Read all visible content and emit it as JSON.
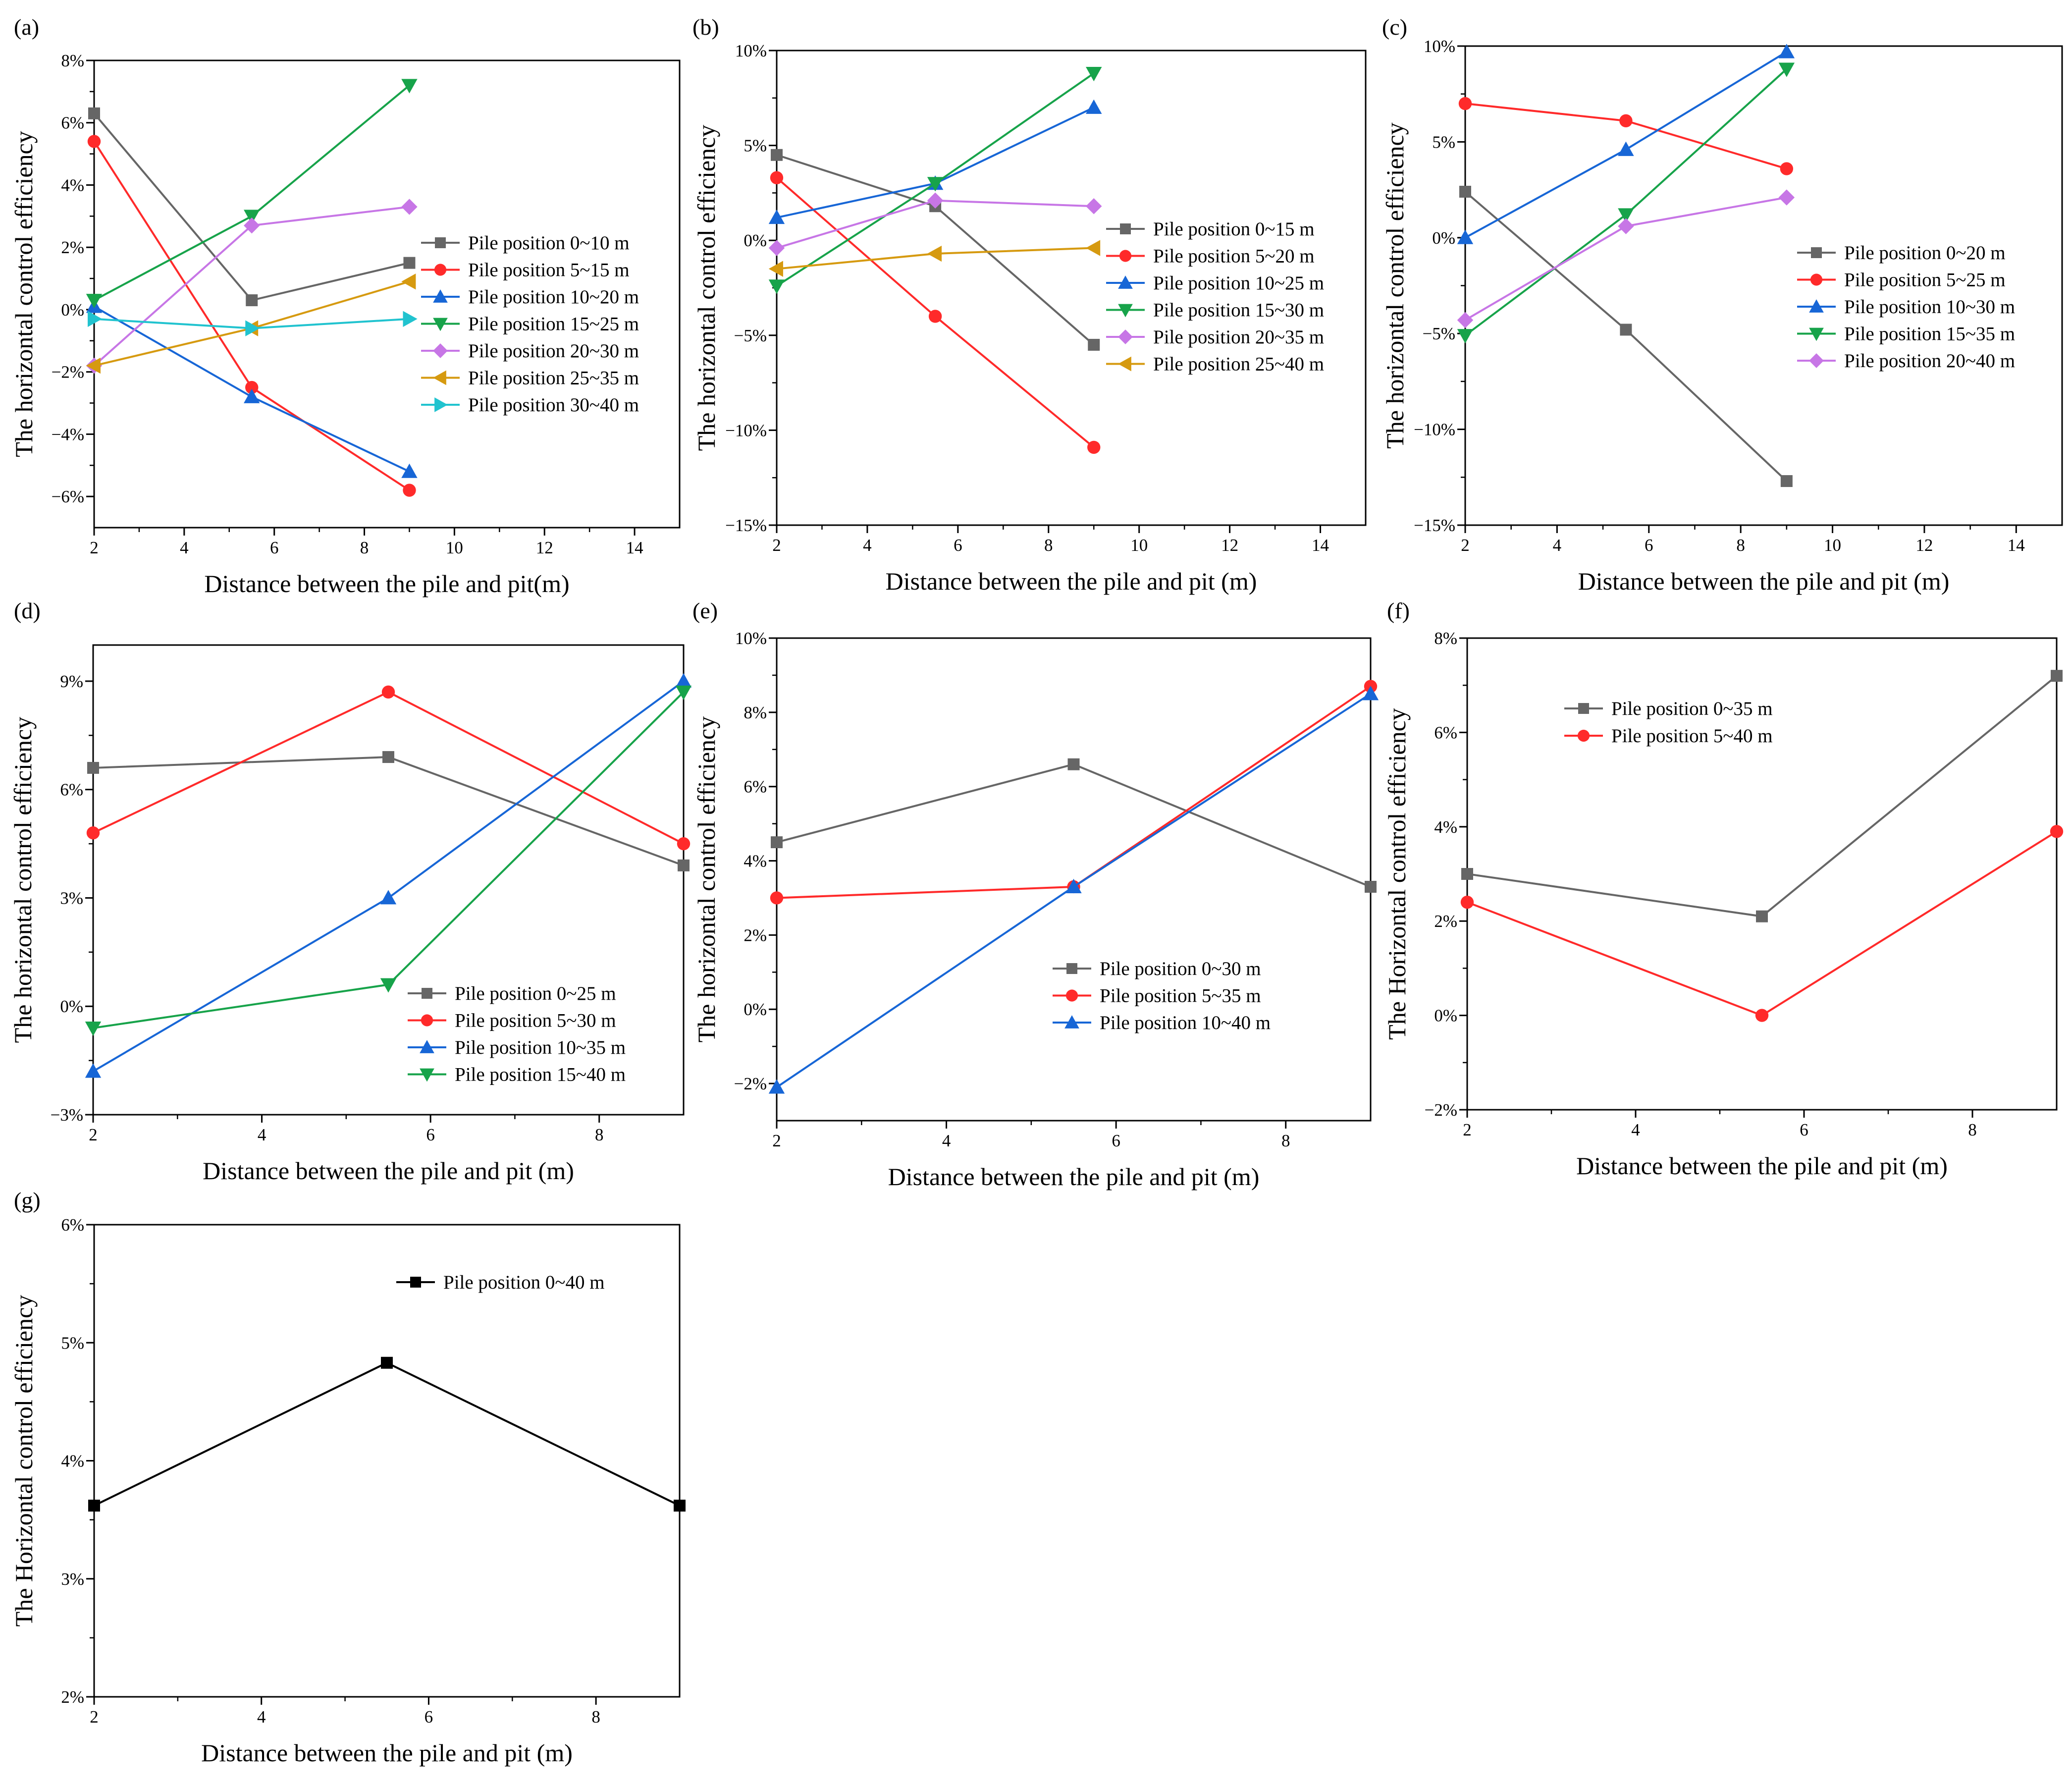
{
  "figure": {
    "description_free": true,
    "colors": {
      "gray": "#666666",
      "red": "#ff2a2a",
      "blue": "#1766d6",
      "green": "#17a34a",
      "violet": "#c776e6",
      "gold": "#d69a10",
      "cyan": "#21c3cf",
      "black": "#000000"
    }
  },
  "chart_data": [
    {
      "id": "a",
      "panel_label": "(a)",
      "type": "line",
      "xlabel": "Distance between the pile and pit(m)",
      "ylabel": "The horizontal control efficiency",
      "xlim": [
        2,
        15
      ],
      "ylim": [
        -7,
        8
      ],
      "xticks": [
        2,
        4,
        6,
        8,
        10,
        12,
        14
      ],
      "xtick_labels": [
        "2",
        "4",
        "6",
        "8",
        "10",
        "12",
        "14"
      ],
      "yticks": [
        -6,
        -4,
        -2,
        0,
        2,
        4,
        6,
        8
      ],
      "ytick_labels": [
        "−6%",
        "−4%",
        "−2%",
        "0%",
        "2%",
        "4%",
        "6%",
        "8%"
      ],
      "legend_position": "center-right",
      "x": [
        2,
        5.5,
        9
      ],
      "series": [
        {
          "name": "Pile position 0~10 m",
          "color": "#666666",
          "marker": "square",
          "values": [
            6.3,
            0.3,
            1.5
          ]
        },
        {
          "name": "Pile position 5~15 m",
          "color": "#ff2a2a",
          "marker": "circle",
          "values": [
            5.4,
            -2.5,
            -5.8
          ]
        },
        {
          "name": "Pile position 10~20 m",
          "color": "#1766d6",
          "marker": "triangle-up",
          "values": [
            0.1,
            -2.8,
            -5.2
          ]
        },
        {
          "name": "Pile position 15~25 m",
          "color": "#17a34a",
          "marker": "triangle-down",
          "values": [
            0.3,
            3.0,
            7.2
          ]
        },
        {
          "name": "Pile position 20~30 m",
          "color": "#c776e6",
          "marker": "diamond",
          "values": [
            -1.8,
            2.7,
            3.3
          ]
        },
        {
          "name": "Pile position 25~35 m",
          "color": "#d69a10",
          "marker": "triangle-left",
          "values": [
            -1.8,
            -0.6,
            0.9
          ]
        },
        {
          "name": "Pile position 30~40 m",
          "color": "#21c3cf",
          "marker": "triangle-right",
          "values": [
            -0.3,
            -0.6,
            -0.3
          ]
        }
      ]
    },
    {
      "id": "b",
      "panel_label": "(b)",
      "type": "line",
      "xlabel": "Distance between the pile and pit (m)",
      "ylabel": "The horizontal control efficiency",
      "xlim": [
        2,
        15
      ],
      "ylim": [
        -15,
        10
      ],
      "xticks": [
        2,
        4,
        6,
        8,
        10,
        12,
        14
      ],
      "xtick_labels": [
        "2",
        "4",
        "6",
        "8",
        "10",
        "12",
        "14"
      ],
      "yticks": [
        -15,
        -10,
        -5,
        0,
        5,
        10
      ],
      "ytick_labels": [
        "−15%",
        "−10%",
        "−5%",
        "0%",
        "5%",
        "10%"
      ],
      "legend_position": "center-right",
      "x": [
        2,
        5.5,
        9
      ],
      "series": [
        {
          "name": "Pile position 0~15 m",
          "color": "#666666",
          "marker": "square",
          "values": [
            4.5,
            1.8,
            -5.5
          ]
        },
        {
          "name": "Pile position 5~20 m",
          "color": "#ff2a2a",
          "marker": "circle",
          "values": [
            3.3,
            -4.0,
            -10.9
          ]
        },
        {
          "name": "Pile position 10~25 m",
          "color": "#1766d6",
          "marker": "triangle-up",
          "values": [
            1.2,
            3.0,
            7.0
          ]
        },
        {
          "name": "Pile position 15~30 m",
          "color": "#17a34a",
          "marker": "triangle-down",
          "values": [
            -2.4,
            3.0,
            8.8
          ]
        },
        {
          "name": "Pile position 20~35 m",
          "color": "#c776e6",
          "marker": "diamond",
          "values": [
            -0.4,
            2.1,
            1.8
          ]
        },
        {
          "name": "Pile position 25~40 m",
          "color": "#d69a10",
          "marker": "triangle-left",
          "values": [
            -1.5,
            -0.7,
            -0.4
          ]
        }
      ]
    },
    {
      "id": "c",
      "panel_label": "(c)",
      "type": "line",
      "xlabel": "Distance between the pile and pit (m)",
      "ylabel": "The horizontal control efficiency",
      "xlim": [
        2,
        15
      ],
      "ylim": [
        -15,
        10
      ],
      "xticks": [
        2,
        4,
        6,
        8,
        10,
        12,
        14
      ],
      "xtick_labels": [
        "2",
        "4",
        "6",
        "8",
        "10",
        "12",
        "14"
      ],
      "yticks": [
        -15,
        -10,
        -5,
        0,
        5,
        10
      ],
      "ytick_labels": [
        "−15%",
        "−10%",
        "−5%",
        "0%",
        "5%",
        "10%"
      ],
      "legend_position": "center-right",
      "x": [
        2,
        5.5,
        9
      ],
      "series": [
        {
          "name": "Pile position 0~20 m",
          "color": "#666666",
          "marker": "square",
          "values": [
            2.4,
            -4.8,
            -12.7
          ]
        },
        {
          "name": "Pile position 5~25 m",
          "color": "#ff2a2a",
          "marker": "circle",
          "values": [
            7.0,
            6.1,
            3.6
          ]
        },
        {
          "name": "Pile position 10~30 m",
          "color": "#1766d6",
          "marker": "triangle-up",
          "values": [
            0.0,
            4.6,
            9.7
          ]
        },
        {
          "name": "Pile position 15~35 m",
          "color": "#17a34a",
          "marker": "triangle-down",
          "values": [
            -5.1,
            1.2,
            8.8
          ]
        },
        {
          "name": "Pile position 20~40 m",
          "color": "#c776e6",
          "marker": "diamond",
          "values": [
            -4.3,
            0.6,
            2.1
          ]
        }
      ]
    },
    {
      "id": "d",
      "panel_label": "(d)",
      "type": "line",
      "xlabel": "Distance between the pile and pit (m)",
      "ylabel": "The horizontal control efficiency",
      "xlim": [
        2,
        9
      ],
      "ylim": [
        -3,
        10
      ],
      "xticks": [
        2,
        4,
        6,
        8
      ],
      "xtick_labels": [
        "2",
        "4",
        "6",
        "8"
      ],
      "yticks": [
        -3,
        0,
        3,
        6,
        9
      ],
      "ytick_labels": [
        "−3%",
        "0%",
        "3%",
        "6%",
        "9%"
      ],
      "legend_position": "bottom-right",
      "x": [
        2,
        5.5,
        9
      ],
      "series": [
        {
          "name": "Pile position 0~25 m",
          "color": "#666666",
          "marker": "square",
          "values": [
            6.6,
            6.9,
            3.9
          ]
        },
        {
          "name": "Pile position 5~30 m",
          "color": "#ff2a2a",
          "marker": "circle",
          "values": [
            4.8,
            8.7,
            4.5
          ]
        },
        {
          "name": "Pile position 10~35 m",
          "color": "#1766d6",
          "marker": "triangle-up",
          "values": [
            -1.8,
            3.0,
            9.0
          ]
        },
        {
          "name": "Pile position 15~40 m",
          "color": "#17a34a",
          "marker": "triangle-down",
          "values": [
            -0.6,
            0.6,
            8.7
          ]
        }
      ]
    },
    {
      "id": "e",
      "panel_label": "(e)",
      "type": "line",
      "xlabel": "Distance between the pile and pit (m)",
      "ylabel": "The horizontal control efficiency",
      "xlim": [
        2,
        9
      ],
      "ylim": [
        -3,
        10
      ],
      "xticks": [
        2,
        4,
        6,
        8
      ],
      "xtick_labels": [
        "2",
        "4",
        "6",
        "8"
      ],
      "yticks": [
        -2,
        0,
        2,
        4,
        6,
        8,
        10
      ],
      "ytick_labels": [
        "−2%",
        "0%",
        "2%",
        "4%",
        "6%",
        "8%",
        "10%"
      ],
      "legend_position": "bottom-right",
      "x": [
        2,
        5.5,
        9
      ],
      "series": [
        {
          "name": "Pile position 0~30 m",
          "color": "#666666",
          "marker": "square",
          "values": [
            4.5,
            6.6,
            3.3
          ]
        },
        {
          "name": "Pile position 5~35 m",
          "color": "#ff2a2a",
          "marker": "circle",
          "values": [
            3.0,
            3.3,
            8.7
          ]
        },
        {
          "name": "Pile position 10~40 m",
          "color": "#1766d6",
          "marker": "triangle-up",
          "values": [
            -2.1,
            3.3,
            8.5
          ]
        }
      ]
    },
    {
      "id": "f",
      "panel_label": "(f)",
      "type": "line",
      "xlabel": "Distance between the pile and pit (m)",
      "ylabel": "The Horizontal control efficiency",
      "xlim": [
        2,
        9
      ],
      "ylim": [
        -2,
        8
      ],
      "xticks": [
        2,
        4,
        6,
        8
      ],
      "xtick_labels": [
        "2",
        "4",
        "6",
        "8"
      ],
      "yticks": [
        -2,
        0,
        2,
        4,
        6,
        8
      ],
      "ytick_labels": [
        "−2%",
        "0%",
        "2%",
        "4%",
        "6%",
        "8%"
      ],
      "legend_position": "top-left",
      "x": [
        2,
        5.5,
        9
      ],
      "series": [
        {
          "name": "Pile position 0~35 m",
          "color": "#666666",
          "marker": "square",
          "values": [
            3.0,
            2.1,
            7.2
          ]
        },
        {
          "name": "Pile position 5~40 m",
          "color": "#ff2a2a",
          "marker": "circle",
          "values": [
            2.4,
            0.0,
            3.9
          ]
        }
      ]
    },
    {
      "id": "g",
      "panel_label": "(g)",
      "type": "line",
      "xlabel": "Distance between the pile and pit (m)",
      "ylabel": "The Horizontal control efficiency",
      "xlim": [
        2,
        9
      ],
      "ylim": [
        2,
        6
      ],
      "xticks": [
        2,
        4,
        6,
        8
      ],
      "xtick_labels": [
        "2",
        "4",
        "6",
        "8"
      ],
      "yticks": [
        2,
        3,
        4,
        5,
        6
      ],
      "ytick_labels": [
        "2%",
        "3%",
        "4%",
        "5%",
        "6%"
      ],
      "legend_position": "top-right",
      "x": [
        2,
        5.5,
        9
      ],
      "series": [
        {
          "name": "Pile position 0~40 m",
          "color": "#000000",
          "marker": "square",
          "values": [
            3.62,
            4.83,
            3.62
          ]
        }
      ]
    }
  ]
}
